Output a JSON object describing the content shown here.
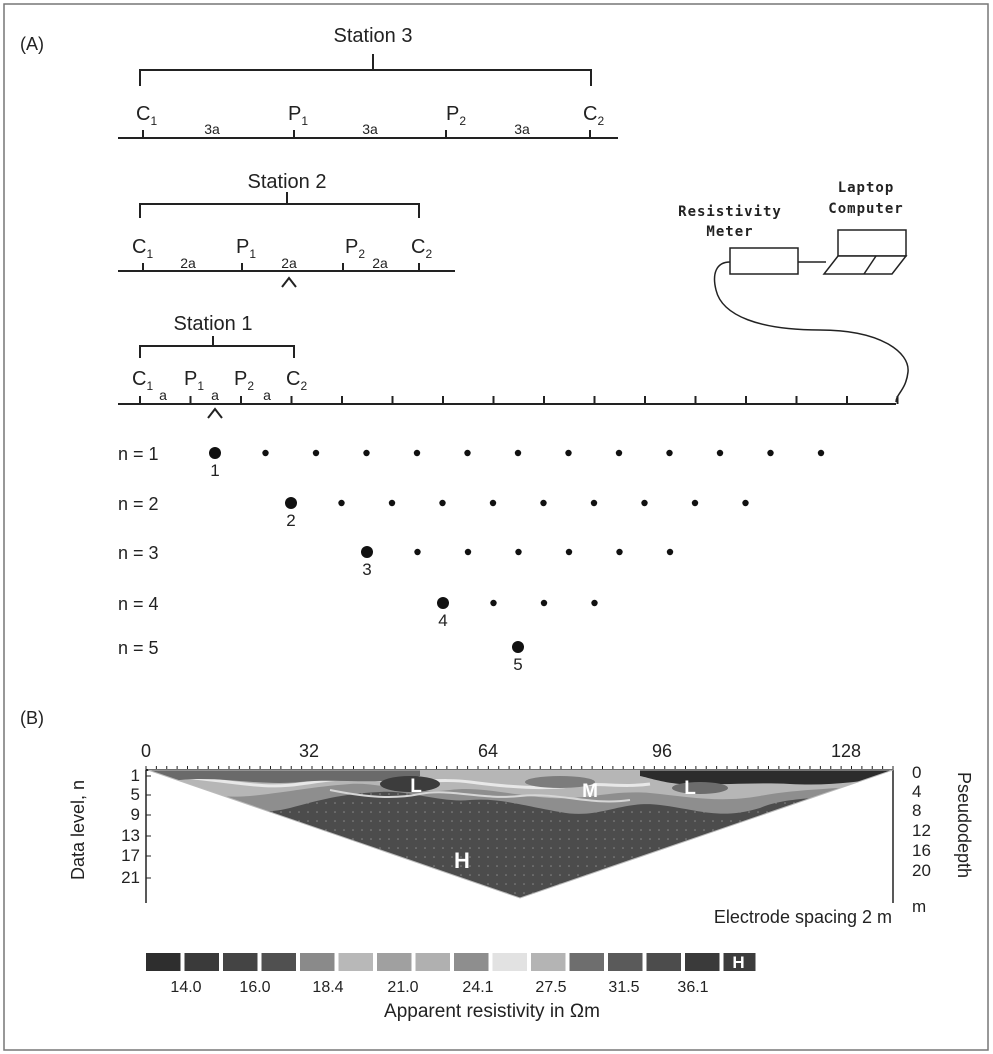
{
  "panel_a": {
    "label": "(A)",
    "station3": {
      "title": "Station 3",
      "c1": "C",
      "c1_sub": "1",
      "p1": "P",
      "p1_sub": "1",
      "p2": "P",
      "p2_sub": "2",
      "c2": "C",
      "c2_sub": "2",
      "spacing": [
        "3a",
        "3a",
        "3a"
      ]
    },
    "station2": {
      "title": "Station 2",
      "c1": "C",
      "c1_sub": "1",
      "p1": "P",
      "p1_sub": "1",
      "p2": "P",
      "p2_sub": "2",
      "c2": "C",
      "c2_sub": "2",
      "spacing": [
        "2a",
        "2a",
        "2a"
      ]
    },
    "station1": {
      "title": "Station 1",
      "c1": "C",
      "c1_sub": "1",
      "p1": "P",
      "p1_sub": "1",
      "p2": "P",
      "p2_sub": "2",
      "c2": "C",
      "c2_sub": "2",
      "spacing": [
        "a",
        "a",
        "a"
      ]
    },
    "meter_label": [
      "Resistivity",
      "Meter"
    ],
    "laptop_label": [
      "Laptop",
      "Computer"
    ],
    "levels": [
      {
        "label": "n = 1",
        "number": "1",
        "count": 13
      },
      {
        "label": "n = 2",
        "number": "2",
        "count": 10
      },
      {
        "label": "n = 3",
        "number": "3",
        "count": 7
      },
      {
        "label": "n = 4",
        "number": "4",
        "count": 4
      },
      {
        "label": "n = 5",
        "number": "5",
        "count": 1
      }
    ]
  },
  "panel_b": {
    "label": "(B)",
    "top_ticks": [
      "0",
      "32",
      "64",
      "96",
      "128"
    ],
    "left_axis_label": "Data level, n",
    "left_ticks": [
      "1",
      "5",
      "9",
      "13",
      "17",
      "21"
    ],
    "right_axis_label": "Pseudodepth",
    "right_ticks": [
      "0",
      "4",
      "8",
      "12",
      "16",
      "20",
      "m"
    ],
    "zones": {
      "low_left": "L",
      "medium": "M",
      "low_right": "L",
      "high": "H"
    },
    "spacing_note": "Electrode spacing 2 m",
    "legend_values": [
      "14.0",
      "16.0",
      "18.4",
      "21.0",
      "24.1",
      "27.5",
      "31.5",
      "36.1"
    ],
    "legend_end_label": "H",
    "legend_title": "Apparent resistivity in Ωm",
    "legend_colors": [
      "#2e2e2e",
      "#3a3a3a",
      "#444444",
      "#505050",
      "#8a8a8a",
      "#b8b8b8",
      "#a0a0a0",
      "#b0b0b0",
      "#8e8e8e",
      "#e2e2e2",
      "#b4b4b4",
      "#6e6e6e",
      "#5a5a5a",
      "#4c4c4c",
      "#3a3a3a"
    ]
  }
}
